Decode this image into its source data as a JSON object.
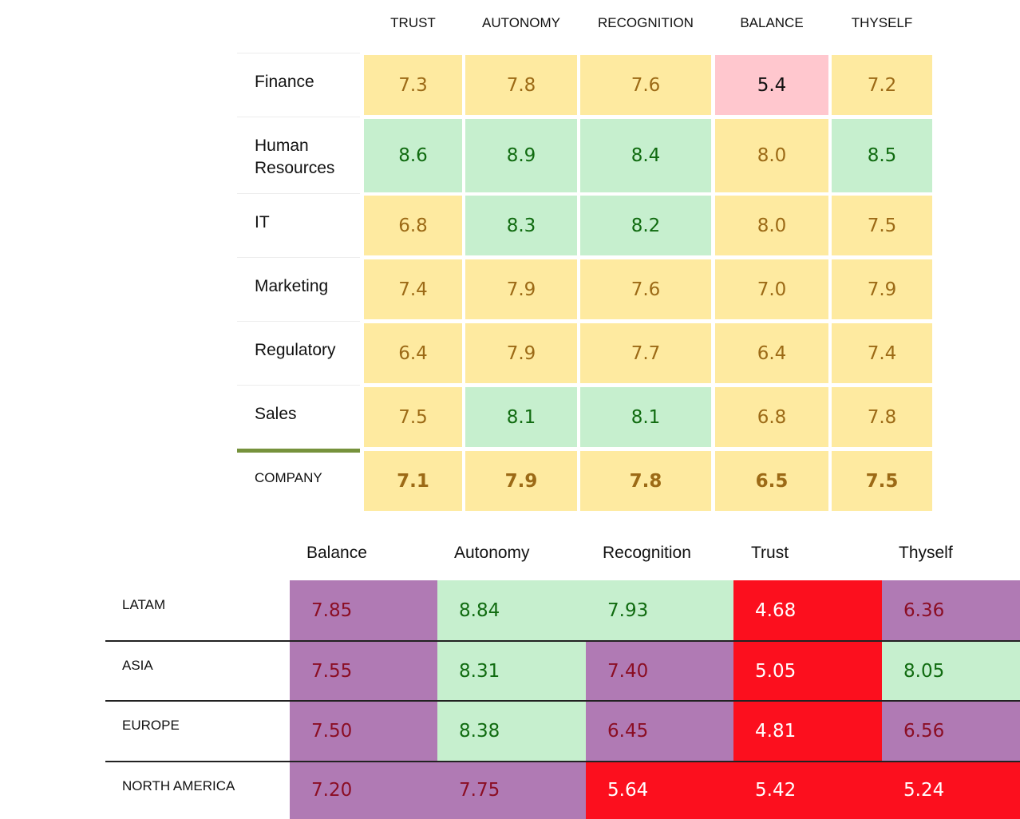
{
  "chart_data": [
    {
      "type": "table",
      "columns": [
        "TRUST",
        "AUTONOMY",
        "RECOGNITION",
        "BALANCE",
        "THYSELF"
      ],
      "rows": [
        {
          "label": "Finance",
          "values": [
            "7.3",
            "7.8",
            "7.6",
            "5.4",
            "7.2"
          ],
          "colors": [
            "yellow",
            "yellow",
            "yellow",
            "pink",
            "yellow"
          ]
        },
        {
          "label": "Human Resources",
          "values": [
            "8.6",
            "8.9",
            "8.4",
            "8.0",
            "8.5"
          ],
          "colors": [
            "green",
            "green",
            "green",
            "yellow",
            "green"
          ]
        },
        {
          "label": "IT",
          "values": [
            "6.8",
            "8.3",
            "8.2",
            "8.0",
            "7.5"
          ],
          "colors": [
            "yellow",
            "green",
            "green",
            "yellow",
            "yellow"
          ]
        },
        {
          "label": "Marketing",
          "values": [
            "7.4",
            "7.9",
            "7.6",
            "7.0",
            "7.9"
          ],
          "colors": [
            "yellow",
            "yellow",
            "yellow",
            "yellow",
            "yellow"
          ]
        },
        {
          "label": "Regulatory",
          "values": [
            "6.4",
            "7.9",
            "7.7",
            "6.4",
            "7.4"
          ],
          "colors": [
            "yellow",
            "yellow",
            "yellow",
            "yellow",
            "yellow"
          ]
        },
        {
          "label": "Sales",
          "values": [
            "7.5",
            "8.1",
            "8.1",
            "6.8",
            "7.8"
          ],
          "colors": [
            "yellow",
            "green",
            "green",
            "yellow",
            "yellow"
          ]
        }
      ],
      "total_row": {
        "label": "COMPANY",
        "values": [
          "7.1",
          "7.9",
          "7.8",
          "6.5",
          "7.5"
        ],
        "colors": [
          "yellow",
          "yellow",
          "yellow",
          "yellow",
          "yellow"
        ]
      }
    },
    {
      "type": "table",
      "columns": [
        "Balance",
        "Autonomy",
        "Recognition",
        "Trust",
        "Thyself"
      ],
      "rows": [
        {
          "label": "LATAM",
          "values": [
            "7.85",
            "8.84",
            "7.93",
            "4.68",
            "6.36"
          ],
          "colors": [
            "purple",
            "green",
            "green",
            "red",
            "purple"
          ]
        },
        {
          "label": "ASIA",
          "values": [
            "7.55",
            "8.31",
            "7.40",
            "5.05",
            "8.05"
          ],
          "colors": [
            "purple",
            "green",
            "purple",
            "red",
            "green"
          ]
        },
        {
          "label": "EUROPE",
          "values": [
            "7.50",
            "8.38",
            "6.45",
            "4.81",
            "6.56"
          ],
          "colors": [
            "purple",
            "green",
            "purple",
            "red",
            "purple"
          ]
        },
        {
          "label": "NORTH AMERICA",
          "values": [
            "7.20",
            "7.75",
            "5.64",
            "5.42",
            "5.24"
          ],
          "colors": [
            "purple",
            "purple",
            "red",
            "red",
            "red"
          ]
        }
      ]
    }
  ],
  "palette": {
    "yellow": "#feeaa0",
    "green": "#c6efce",
    "pink": "#ffc7ce",
    "purple": "#b07ab4",
    "red": "#fc0f1e",
    "company_rule": "#76923c"
  }
}
